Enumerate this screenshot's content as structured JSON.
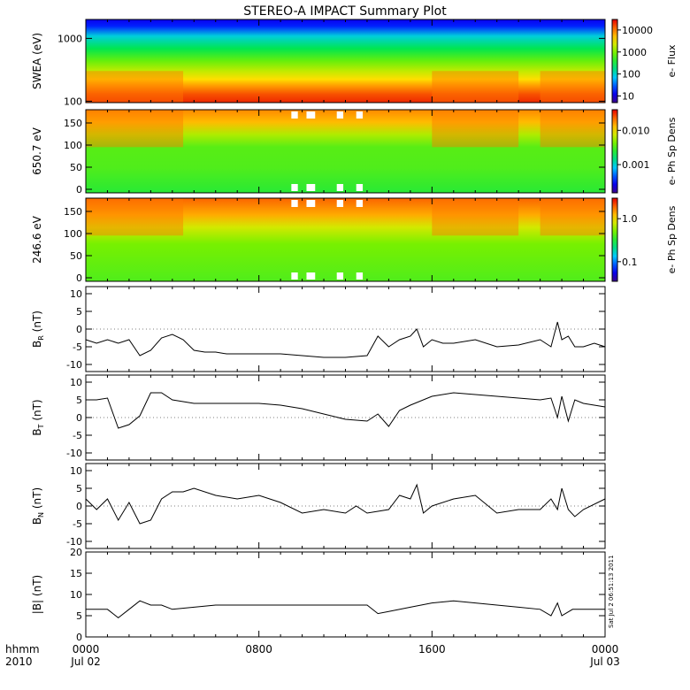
{
  "title": "STEREO-A IMPACT Summary Plot",
  "stamp": "Sat Jul  2 06:51:13 2011",
  "footer": {
    "hhmm": "hhmm",
    "year": "2010"
  },
  "colors": {
    "line": "#000000",
    "missing": "#ffffff"
  },
  "chart_data": [
    {
      "type": "heatmap",
      "ylabel": "SWEA (eV)",
      "ylog": true,
      "ylim": [
        95,
        2000
      ],
      "yticks": [
        100,
        1000
      ],
      "ytick_labels": [
        "100",
        "1000"
      ],
      "colorbar": {
        "label": "e- Flux",
        "log": true,
        "range": [
          5,
          30000
        ],
        "ticks": [
          10,
          100,
          1000,
          10000
        ],
        "tick_labels": [
          "10",
          "100",
          "1000",
          "10000"
        ]
      }
    },
    {
      "type": "heatmap",
      "ylabel": "650.7 eV",
      "ylim": [
        -8,
        180
      ],
      "yticks": [
        0,
        50,
        100,
        150
      ],
      "ytick_labels": [
        "0",
        "50",
        "100",
        "150"
      ],
      "colorbar": {
        "label": "e- Ph Sp Dens",
        "log": true,
        "range": [
          0.00015,
          0.04
        ],
        "ticks": [
          0.001,
          0.01
        ],
        "tick_labels": [
          "0.001",
          "0.010"
        ]
      }
    },
    {
      "type": "heatmap",
      "ylabel": "246.6 eV",
      "ylim": [
        -8,
        180
      ],
      "yticks": [
        0,
        50,
        100,
        150
      ],
      "ytick_labels": [
        "0",
        "50",
        "100",
        "150"
      ],
      "colorbar": {
        "label": "e- Ph Sp Dens",
        "log": true,
        "range": [
          0.035,
          3
        ],
        "ticks": [
          0.1,
          1.0
        ],
        "tick_labels": [
          "0.1",
          "1.0"
        ]
      }
    },
    {
      "type": "line",
      "ylabel_main": "B",
      "ylabel_sub": "R",
      "ylabel_unit": "(nT)",
      "ylim": [
        -12,
        12
      ],
      "yticks": [
        -10,
        -5,
        0,
        5,
        10
      ],
      "ytick_labels": [
        "-10",
        "-5",
        "0",
        "5",
        "10"
      ],
      "x": [
        0,
        0.5,
        1,
        1.5,
        2,
        2.5,
        3,
        3.5,
        4,
        4.5,
        5,
        5.5,
        6,
        6.5,
        7,
        8,
        9,
        10,
        11,
        12,
        13,
        13.5,
        14,
        14.5,
        15,
        15.3,
        15.6,
        16,
        16.5,
        17,
        18,
        19,
        20,
        21,
        21.5,
        21.8,
        22,
        22.3,
        22.6,
        23,
        23.5,
        24
      ],
      "y": [
        -3,
        -4,
        -3,
        -4,
        -3,
        -7.5,
        -6,
        -2.5,
        -1.5,
        -3,
        -6,
        -6.5,
        -6.5,
        -7,
        -7,
        -7,
        -7,
        -7.5,
        -8,
        -8,
        -7.5,
        -2,
        -5,
        -3,
        -2,
        0,
        -5,
        -3,
        -4,
        -4,
        -3,
        -5,
        -4.5,
        -3,
        -5,
        2,
        -3,
        -2,
        -5,
        -5,
        -4,
        -5
      ]
    },
    {
      "type": "line",
      "ylabel_main": "B",
      "ylabel_sub": "T",
      "ylabel_unit": "(nT)",
      "ylim": [
        -12,
        12
      ],
      "yticks": [
        -10,
        -5,
        0,
        5,
        10
      ],
      "ytick_labels": [
        "-10",
        "-5",
        "0",
        "5",
        "10"
      ],
      "x": [
        0,
        0.5,
        1,
        1.5,
        2,
        2.5,
        3,
        3.5,
        4,
        5,
        6,
        7,
        8,
        9,
        10,
        11,
        12,
        13,
        13.5,
        14,
        14.5,
        15,
        16,
        17,
        18,
        19,
        20,
        21,
        21.5,
        21.8,
        22,
        22.3,
        22.6,
        23,
        24
      ],
      "y": [
        5,
        5,
        5.5,
        -3,
        -2,
        0.5,
        7,
        7,
        5,
        4,
        4,
        4,
        4,
        3.5,
        2.5,
        1,
        -0.5,
        -1,
        1,
        -2.5,
        2,
        3.5,
        6,
        7,
        6.5,
        6,
        5.5,
        5,
        5.5,
        0,
        6,
        -1,
        5,
        4,
        3
      ]
    },
    {
      "type": "line",
      "ylabel_main": "B",
      "ylabel_sub": "N",
      "ylabel_unit": "(nT)",
      "ylim": [
        -12,
        12
      ],
      "yticks": [
        -10,
        -5,
        0,
        5,
        10
      ],
      "ytick_labels": [
        "-10",
        "-5",
        "0",
        "5",
        "10"
      ],
      "x": [
        0,
        0.5,
        1,
        1.5,
        2,
        2.5,
        3,
        3.5,
        4,
        4.5,
        5,
        6,
        7,
        8,
        9,
        10,
        11,
        12,
        12.5,
        13,
        14,
        14.5,
        15,
        15.3,
        15.6,
        16,
        17,
        18,
        19,
        20,
        21,
        21.5,
        21.8,
        22,
        22.3,
        22.6,
        23,
        24
      ],
      "y": [
        2,
        -1,
        2,
        -4,
        1,
        -5,
        -4,
        2,
        4,
        4,
        5,
        3,
        2,
        3,
        1,
        -2,
        -1,
        -2,
        0,
        -2,
        -1,
        3,
        2,
        6,
        -2,
        0,
        2,
        3,
        -2,
        -1,
        -1,
        2,
        -1,
        5,
        -1,
        -3,
        -1,
        2
      ]
    },
    {
      "type": "line",
      "ylabel_main": "|B|",
      "ylabel_sub": "",
      "ylabel_unit": "(nT)",
      "ylim": [
        0,
        20
      ],
      "yticks": [
        0,
        5,
        10,
        15,
        20
      ],
      "ytick_labels": [
        "0",
        "5",
        "10",
        "15",
        "20"
      ],
      "x": [
        0,
        1,
        1.5,
        2,
        2.5,
        3,
        3.5,
        4,
        5,
        6,
        8,
        10,
        12,
        13,
        13.5,
        14,
        15,
        16,
        17,
        18,
        19,
        20,
        21,
        21.5,
        21.8,
        22,
        22.5,
        23,
        24
      ],
      "y": [
        6.5,
        6.5,
        4.5,
        6.5,
        8.5,
        7.5,
        7.5,
        6.5,
        7,
        7.5,
        7.5,
        7.5,
        7.5,
        7.5,
        5.5,
        6,
        7,
        8,
        8.5,
        8,
        7.5,
        7,
        6.5,
        5,
        8,
        5,
        6.5,
        6.5,
        6.5
      ]
    }
  ],
  "xaxis": {
    "range_hours": [
      0,
      24
    ],
    "ticks": [
      {
        "hour": 0,
        "time": "0000",
        "date": "Jul 02"
      },
      {
        "hour": 8,
        "time": "0800",
        "date": ""
      },
      {
        "hour": 16,
        "time": "1600",
        "date": ""
      },
      {
        "hour": 24,
        "time": "0000",
        "date": "Jul 03"
      }
    ]
  }
}
